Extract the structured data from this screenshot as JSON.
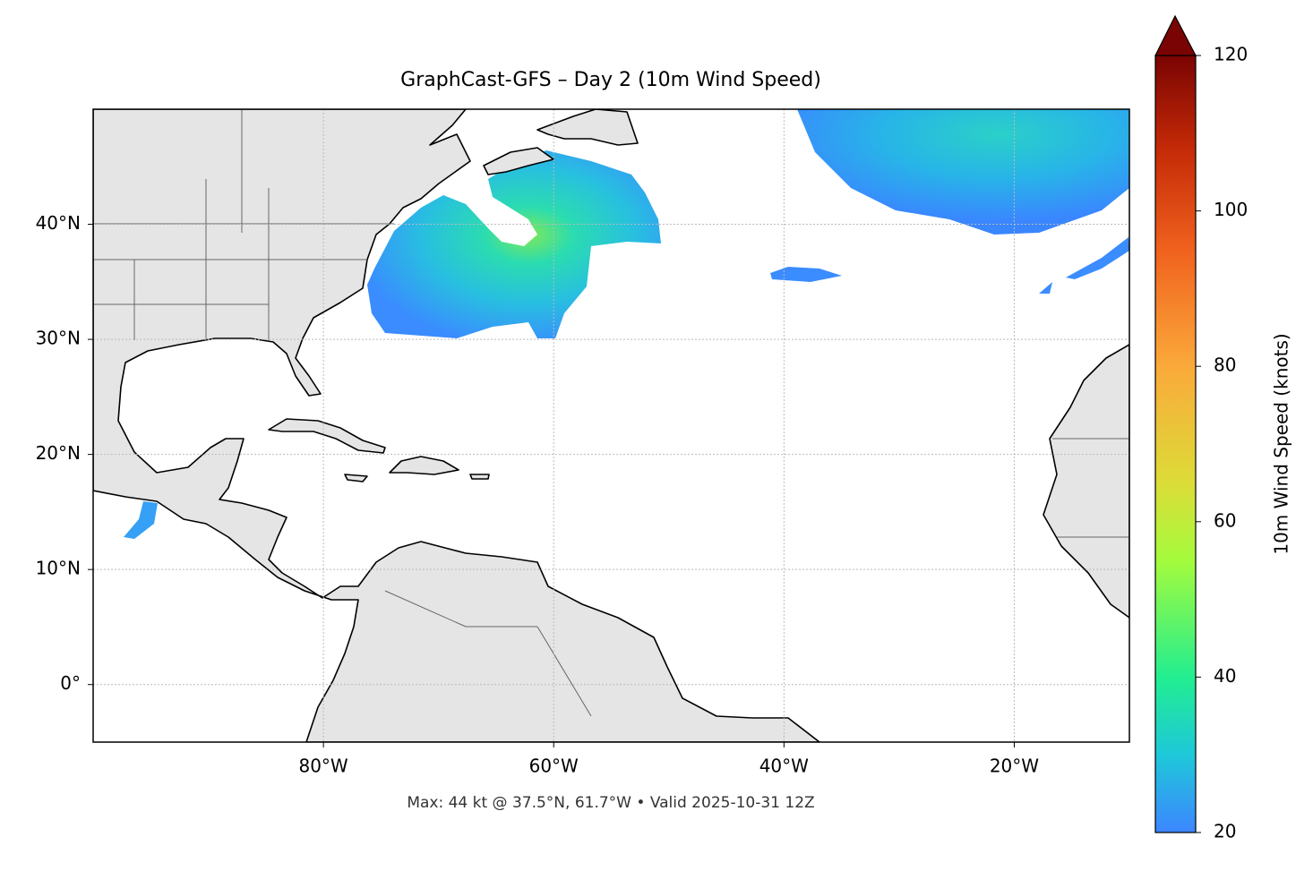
{
  "chart_data": {
    "type": "map",
    "title": "GraphCast-GFS – Day 2 (10m Wind Speed)",
    "footer": "Max: 44 kt @ 37.5°N, 61.7°W • Valid 2025-10-31 12Z",
    "xlim": [
      -100,
      -10
    ],
    "ylim": [
      -5,
      50
    ],
    "xticks": [
      {
        "value": -80,
        "label": "80°W"
      },
      {
        "value": -60,
        "label": "60°W"
      },
      {
        "value": -40,
        "label": "40°W"
      },
      {
        "value": -20,
        "label": "20°W"
      }
    ],
    "yticks": [
      {
        "value": 0,
        "label": "0°"
      },
      {
        "value": 10,
        "label": "10°N"
      },
      {
        "value": 20,
        "label": "20°N"
      },
      {
        "value": 30,
        "label": "30°N"
      },
      {
        "value": 40,
        "label": "40°N"
      }
    ],
    "grid": true,
    "colorbar": {
      "label": "10m Wind Speed (knots)",
      "lim": [
        20,
        120
      ],
      "ticks": [
        20,
        40,
        60,
        80,
        100,
        120
      ],
      "extend": "max"
    }
  }
}
